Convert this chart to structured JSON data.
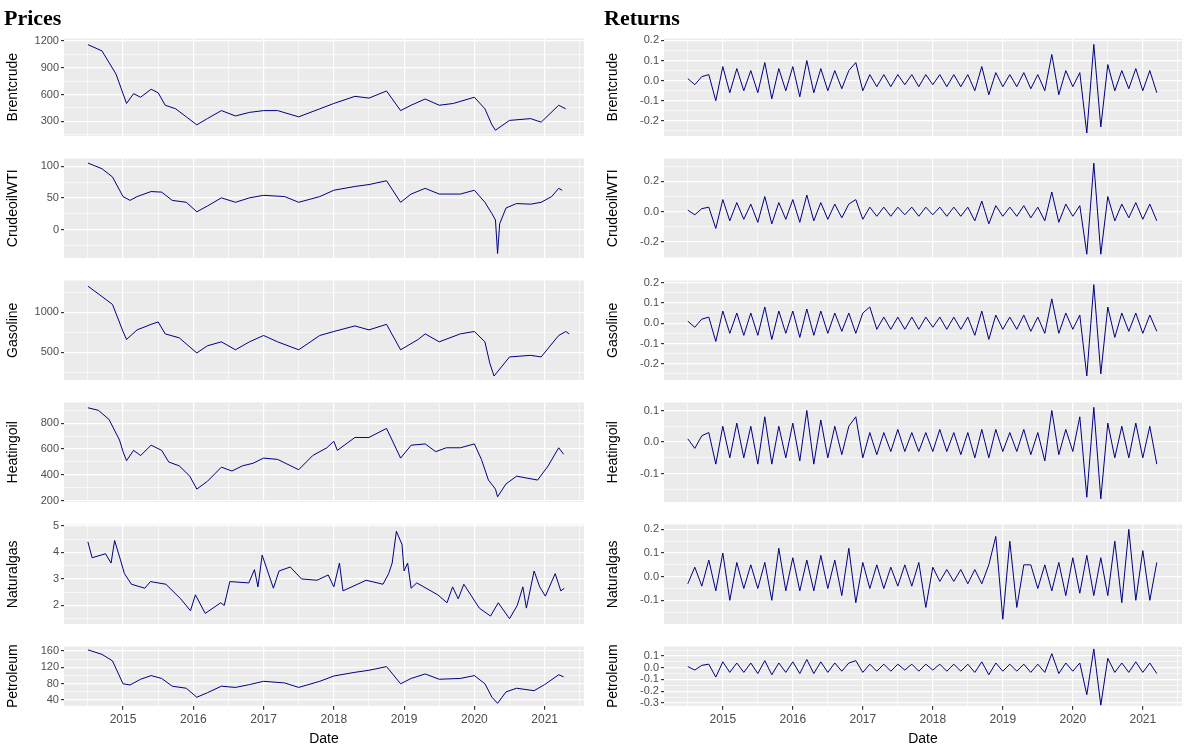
{
  "chart_data": [
    {
      "type": "line",
      "title": "Prices",
      "ylabel": "Brentcrude",
      "color": "#000080",
      "grid": true,
      "tick_labels": "y",
      "xlim": [
        2014.16,
        2021.56
      ],
      "xticks": [
        {
          "value": 2014.5,
          "label": null
        },
        2015,
        {
          "value": 2015.5,
          "label": null
        },
        2016,
        {
          "value": 2016.5,
          "label": null
        },
        2017,
        {
          "value": 2017.5,
          "label": null
        },
        2018,
        {
          "value": 2018.5,
          "label": null
        },
        2019,
        {
          "value": 2019.5,
          "label": null
        },
        2020,
        {
          "value": 2020.5,
          "label": null
        },
        2021,
        {
          "value": 2021.5,
          "label": null
        }
      ],
      "ylim": [
        135,
        1230
      ],
      "yticks": [
        {
          "value": 150,
          "label": null
        },
        300,
        {
          "value": 450,
          "label": null
        },
        600,
        {
          "value": 750,
          "label": null
        },
        900,
        {
          "value": 1050,
          "label": null
        },
        1200
      ],
      "x": [
        2014.5,
        2014.7,
        2014.8,
        2014.9,
        2015,
        2015.05,
        2015.15,
        2015.25,
        2015.4,
        2015.5,
        2015.6,
        2015.75,
        2015.9,
        2016.05,
        2016.2,
        2016.4,
        2016.6,
        2016.8,
        2017,
        2017.2,
        2017.5,
        2017.8,
        2018,
        2018.3,
        2018.5,
        2018.75,
        2018.95,
        2019.1,
        2019.3,
        2019.5,
        2019.7,
        2020,
        2020.15,
        2020.25,
        2020.3,
        2020.5,
        2020.8,
        2020.95,
        2021.2,
        2021.3
      ],
      "values": [
        1160,
        1090,
        960,
        830,
        610,
        500,
        610,
        570,
        660,
        620,
        480,
        440,
        350,
        260,
        330,
        420,
        360,
        400,
        420,
        420,
        350,
        440,
        500,
        580,
        560,
        640,
        420,
        480,
        550,
        480,
        500,
        570,
        440,
        260,
        200,
        310,
        330,
        290,
        480,
        440
      ]
    },
    {
      "type": "line",
      "ylabel": "CrudeoilWTI",
      "color": "#000080",
      "grid": true,
      "tick_labels": "y",
      "xlim": [
        2014.16,
        2021.56
      ],
      "xticks": [
        {
          "value": 2014.5,
          "label": null
        },
        2015,
        {
          "value": 2015.5,
          "label": null
        },
        2016,
        {
          "value": 2016.5,
          "label": null
        },
        2017,
        {
          "value": 2017.5,
          "label": null
        },
        2018,
        {
          "value": 2018.5,
          "label": null
        },
        2019,
        {
          "value": 2019.5,
          "label": null
        },
        2020,
        {
          "value": 2020.5,
          "label": null
        },
        2021,
        {
          "value": 2021.5,
          "label": null
        }
      ],
      "ylim": [
        -45,
        112
      ],
      "yticks": [
        {
          "value": -25,
          "label": null
        },
        0,
        {
          "value": 25,
          "label": null
        },
        50,
        {
          "value": 75,
          "label": null
        },
        100
      ],
      "x": [
        2014.5,
        2014.7,
        2014.85,
        2015,
        2015.1,
        2015.2,
        2015.4,
        2015.55,
        2015.7,
        2015.9,
        2016.05,
        2016.2,
        2016.4,
        2016.6,
        2016.8,
        2017,
        2017.3,
        2017.5,
        2017.8,
        2018,
        2018.3,
        2018.5,
        2018.75,
        2018.95,
        2019.1,
        2019.3,
        2019.5,
        2019.8,
        2020,
        2020.15,
        2020.25,
        2020.3,
        2020.33,
        2020.36,
        2020.45,
        2020.6,
        2020.8,
        2020.95,
        2021.1,
        2021.2,
        2021.25
      ],
      "values": [
        105,
        96,
        83,
        52,
        46,
        52,
        60,
        59,
        46,
        43,
        28,
        37,
        50,
        43,
        50,
        54,
        52,
        43,
        52,
        62,
        68,
        71,
        77,
        43,
        56,
        65,
        56,
        56,
        62,
        43,
        25,
        15,
        -38,
        9,
        34,
        41,
        40,
        43,
        52,
        65,
        62
      ]
    },
    {
      "type": "line",
      "ylabel": "Gasoline",
      "color": "#000080",
      "grid": true,
      "tick_labels": "y",
      "xlim": [
        2014.16,
        2021.56
      ],
      "xticks": [
        {
          "value": 2014.5,
          "label": null
        },
        2015,
        {
          "value": 2015.5,
          "label": null
        },
        2016,
        {
          "value": 2016.5,
          "label": null
        },
        2017,
        {
          "value": 2017.5,
          "label": null
        },
        2018,
        {
          "value": 2018.5,
          "label": null
        },
        2019,
        {
          "value": 2019.5,
          "label": null
        },
        2020,
        {
          "value": 2020.5,
          "label": null
        },
        2021,
        {
          "value": 2021.5,
          "label": null
        }
      ],
      "ylim": [
        150,
        1400
      ],
      "yticks": [
        {
          "value": 250,
          "label": null
        },
        500,
        {
          "value": 750,
          "label": null
        },
        1000,
        {
          "value": 1250,
          "label": null
        }
      ],
      "x": [
        2014.5,
        2014.7,
        2014.85,
        2015,
        2015.05,
        2015.2,
        2015.4,
        2015.5,
        2015.6,
        2015.8,
        2016.05,
        2016.2,
        2016.4,
        2016.6,
        2016.8,
        2017,
        2017.2,
        2017.5,
        2017.8,
        2018,
        2018.3,
        2018.5,
        2018.75,
        2018.95,
        2019.2,
        2019.3,
        2019.5,
        2019.8,
        2020,
        2020.15,
        2020.22,
        2020.28,
        2020.5,
        2020.8,
        2020.95,
        2021.2,
        2021.3,
        2021.35
      ],
      "values": [
        1330,
        1200,
        1100,
        760,
        660,
        780,
        850,
        880,
        730,
        680,
        490,
        580,
        630,
        530,
        630,
        710,
        630,
        530,
        710,
        760,
        830,
        780,
        850,
        530,
        660,
        730,
        630,
        730,
        760,
        630,
        360,
        200,
        440,
        460,
        440,
        710,
        760,
        730
      ]
    },
    {
      "type": "line",
      "ylabel": "Heatingoil",
      "color": "#000080",
      "grid": true,
      "tick_labels": "y",
      "xlim": [
        2014.16,
        2021.56
      ],
      "xticks": [
        {
          "value": 2014.5,
          "label": null
        },
        2015,
        {
          "value": 2015.5,
          "label": null
        },
        2016,
        {
          "value": 2016.5,
          "label": null
        },
        2017,
        {
          "value": 2017.5,
          "label": null
        },
        2018,
        {
          "value": 2018.5,
          "label": null
        },
        2019,
        {
          "value": 2019.5,
          "label": null
        },
        2020,
        {
          "value": 2020.5,
          "label": null
        },
        2021,
        {
          "value": 2021.5,
          "label": null
        }
      ],
      "ylim": [
        190,
        960
      ],
      "yticks": [
        200,
        {
          "value": 300,
          "label": null
        },
        400,
        {
          "value": 500,
          "label": null
        },
        600,
        {
          "value": 700,
          "label": null
        },
        800,
        {
          "value": 900,
          "label": null
        }
      ],
      "x": [
        2014.5,
        2014.65,
        2014.8,
        2014.95,
        2015,
        2015.05,
        2015.15,
        2015.25,
        2015.4,
        2015.55,
        2015.65,
        2015.8,
        2015.95,
        2016.05,
        2016.2,
        2016.4,
        2016.55,
        2016.7,
        2016.85,
        2017,
        2017.2,
        2017.5,
        2017.7,
        2017.9,
        2018,
        2018.05,
        2018.3,
        2018.5,
        2018.75,
        2018.95,
        2019.1,
        2019.3,
        2019.45,
        2019.6,
        2019.8,
        2020,
        2020.1,
        2020.2,
        2020.3,
        2020.33,
        2020.45,
        2020.6,
        2020.9,
        2021.05,
        2021.2,
        2021.27
      ],
      "values": [
        920,
        900,
        830,
        670,
        580,
        510,
        590,
        550,
        630,
        590,
        500,
        470,
        390,
        290,
        350,
        460,
        430,
        470,
        490,
        530,
        520,
        440,
        550,
        610,
        660,
        590,
        690,
        690,
        760,
        530,
        630,
        640,
        580,
        610,
        610,
        640,
        520,
        360,
        290,
        230,
        330,
        390,
        360,
        470,
        610,
        560
      ]
    },
    {
      "type": "line",
      "ylabel": "Naturalgas",
      "color": "#000080",
      "grid": true,
      "tick_labels": "y",
      "xlim": [
        2014.16,
        2021.56
      ],
      "xticks": [
        {
          "value": 2014.5,
          "label": null
        },
        2015,
        {
          "value": 2015.5,
          "label": null
        },
        2016,
        {
          "value": 2016.5,
          "label": null
        },
        2017,
        {
          "value": 2017.5,
          "label": null
        },
        2018,
        {
          "value": 2018.5,
          "label": null
        },
        2019,
        {
          "value": 2019.5,
          "label": null
        },
        2020,
        {
          "value": 2020.5,
          "label": null
        },
        2021,
        {
          "value": 2021.5,
          "label": null
        }
      ],
      "ylim": [
        1.3,
        5.05
      ],
      "yticks": [
        {
          "value": 1.5,
          "label": null
        },
        2,
        {
          "value": 2.5,
          "label": null
        },
        3,
        {
          "value": 3.5,
          "label": null
        },
        4,
        {
          "value": 4.5,
          "label": null
        },
        5
      ],
      "x": [
        2014.5,
        2014.56,
        2014.75,
        2014.83,
        2014.88,
        2014.96,
        2015.02,
        2015.12,
        2015.31,
        2015.39,
        2015.61,
        2015.82,
        2015.96,
        2016.03,
        2016.17,
        2016.39,
        2016.44,
        2016.52,
        2016.79,
        2016.87,
        2016.92,
        2016.98,
        2017.14,
        2017.22,
        2017.38,
        2017.54,
        2017.76,
        2017.92,
        2018,
        2018.08,
        2018.13,
        2018.46,
        2018.7,
        2018.78,
        2018.83,
        2018.89,
        2018.97,
        2019,
        2019.05,
        2019.1,
        2019.18,
        2019.48,
        2019.61,
        2019.69,
        2019.77,
        2019.85,
        2020.07,
        2020.23,
        2020.34,
        2020.5,
        2020.61,
        2020.69,
        2020.74,
        2020.85,
        2020.93,
        2021.01,
        2021.15,
        2021.23,
        2021.28
      ],
      "values": [
        4.4,
        3.8,
        3.95,
        3.6,
        4.45,
        3.75,
        3.2,
        2.8,
        2.65,
        2.9,
        2.8,
        2.25,
        1.8,
        2.4,
        1.7,
        2.1,
        2.0,
        2.9,
        2.85,
        3.35,
        2.7,
        3.9,
        2.65,
        3.3,
        3.45,
        3.0,
        2.95,
        3.15,
        2.7,
        3.6,
        2.55,
        2.95,
        2.8,
        3.2,
        3.6,
        4.8,
        4.3,
        3.3,
        3.6,
        2.65,
        2.85,
        2.4,
        2.1,
        2.7,
        2.25,
        2.8,
        1.9,
        1.6,
        2.1,
        1.5,
        2.0,
        2.7,
        1.9,
        3.3,
        2.7,
        2.35,
        3.2,
        2.55,
        2.65
      ]
    },
    {
      "type": "line",
      "ylabel": "Petroleum",
      "xlabel": "Date",
      "color": "#000080",
      "grid": true,
      "xlim": [
        2014.16,
        2021.56
      ],
      "xticks": [
        {
          "value": 2014.5,
          "label": null
        },
        2015,
        {
          "value": 2015.5,
          "label": null
        },
        2016,
        {
          "value": 2016.5,
          "label": null
        },
        2017,
        {
          "value": 2017.5,
          "label": null
        },
        2018,
        {
          "value": 2018.5,
          "label": null
        },
        2019,
        {
          "value": 2019.5,
          "label": null
        },
        2020,
        {
          "value": 2020.5,
          "label": null
        },
        2021,
        {
          "value": 2021.5,
          "label": null
        }
      ],
      "ylim": [
        26,
        171
      ],
      "yticks": [
        40,
        {
          "value": 60,
          "label": null
        },
        80,
        {
          "value": 100,
          "label": null
        },
        120,
        {
          "value": 140,
          "label": null
        },
        160
      ],
      "x": [
        2014.5,
        2014.7,
        2014.85,
        2015,
        2015.1,
        2015.25,
        2015.4,
        2015.55,
        2015.7,
        2015.9,
        2016.05,
        2016.2,
        2016.4,
        2016.6,
        2016.8,
        2017,
        2017.3,
        2017.5,
        2017.8,
        2018,
        2018.3,
        2018.5,
        2018.75,
        2018.95,
        2019.1,
        2019.3,
        2019.5,
        2019.8,
        2020,
        2020.15,
        2020.25,
        2020.33,
        2020.45,
        2020.6,
        2020.85,
        2021,
        2021.2,
        2021.27
      ],
      "values": [
        163,
        152,
        136,
        80,
        77,
        91,
        100,
        93,
        74,
        69,
        47,
        58,
        74,
        71,
        78,
        86,
        82,
        71,
        86,
        99,
        108,
        113,
        122,
        80,
        93,
        104,
        91,
        93,
        100,
        80,
        47,
        32,
        60,
        69,
        63,
        78,
        102,
        97
      ]
    },
    {
      "type": "line",
      "title": "Returns",
      "ylabel": "Brentcrude",
      "color": "#000080",
      "grid": true,
      "tick_labels": "y",
      "xlim": [
        2014.16,
        2021.56
      ],
      "xticks": [
        {
          "value": 2014.5,
          "label": null
        },
        2015,
        {
          "value": 2015.5,
          "label": null
        },
        2016,
        {
          "value": 2016.5,
          "label": null
        },
        2017,
        {
          "value": 2017.5,
          "label": null
        },
        2018,
        {
          "value": 2018.5,
          "label": null
        },
        2019,
        {
          "value": 2019.5,
          "label": null
        },
        2020,
        {
          "value": 2020.5,
          "label": null
        },
        2021,
        {
          "value": 2021.5,
          "label": null
        }
      ],
      "ylim": [
        -0.275,
        0.21
      ],
      "yticks": [
        {
          "value": -0.25,
          "label": null
        },
        -0.2,
        {
          "value": -0.15,
          "label": null
        },
        -0.1,
        {
          "value": -0.05,
          "label": null
        },
        {
          "value": 0,
          "label": "0.0"
        },
        {
          "value": 0.05,
          "label": null
        },
        0.1,
        {
          "value": 0.15,
          "label": null
        },
        0.2
      ],
      "x": [
        2014.5,
        2014.6,
        2014.7,
        2014.8,
        2014.9,
        2015,
        2015.1,
        2015.2,
        2015.3,
        2015.4,
        2015.5,
        2015.6,
        2015.7,
        2015.8,
        2015.9,
        2016,
        2016.1,
        2016.2,
        2016.3,
        2016.4,
        2016.5,
        2016.6,
        2016.7,
        2016.8,
        2016.9,
        2017,
        2017.1,
        2017.2,
        2017.3,
        2017.4,
        2017.5,
        2017.6,
        2017.7,
        2017.8,
        2017.9,
        2018,
        2018.1,
        2018.2,
        2018.3,
        2018.4,
        2018.5,
        2018.6,
        2018.7,
        2018.8,
        2018.9,
        2019,
        2019.1,
        2019.2,
        2019.3,
        2019.4,
        2019.5,
        2019.6,
        2019.7,
        2019.8,
        2019.9,
        2020,
        2020.1,
        2020.2,
        2020.3,
        2020.4,
        2020.5,
        2020.6,
        2020.7,
        2020.8,
        2020.9,
        2021,
        2021.1,
        2021.2
      ],
      "values": [
        0.01,
        -0.02,
        0.02,
        0.03,
        -0.1,
        0.07,
        -0.06,
        0.06,
        -0.05,
        0.05,
        -0.06,
        0.09,
        -0.09,
        0.06,
        -0.05,
        0.07,
        -0.08,
        0.1,
        -0.06,
        0.06,
        -0.05,
        0.05,
        -0.04,
        0.05,
        0.09,
        -0.05,
        0.03,
        -0.03,
        0.03,
        -0.03,
        0.03,
        -0.02,
        0.03,
        -0.03,
        0.03,
        -0.02,
        0.03,
        -0.03,
        0.03,
        -0.03,
        0.03,
        -0.05,
        0.07,
        -0.07,
        0.04,
        -0.03,
        0.03,
        -0.03,
        0.04,
        -0.04,
        0.03,
        -0.05,
        0.13,
        -0.07,
        0.05,
        -0.03,
        0.04,
        -0.26,
        0.18,
        -0.23,
        0.08,
        -0.05,
        0.05,
        -0.04,
        0.06,
        -0.05,
        0.05,
        -0.06
      ]
    },
    {
      "type": "line",
      "ylabel": "CrudeoilWTI",
      "color": "#000080",
      "grid": true,
      "tick_labels": "y",
      "xlim": [
        2014.16,
        2021.56
      ],
      "xticks": [
        {
          "value": 2014.5,
          "label": null
        },
        2015,
        {
          "value": 2015.5,
          "label": null
        },
        2016,
        {
          "value": 2016.5,
          "label": null
        },
        2017,
        {
          "value": 2017.5,
          "label": null
        },
        2018,
        {
          "value": 2018.5,
          "label": null
        },
        2019,
        {
          "value": 2019.5,
          "label": null
        },
        2020,
        {
          "value": 2020.5,
          "label": null
        },
        2021,
        {
          "value": 2021.5,
          "label": null
        }
      ],
      "ylim": [
        -0.305,
        0.35
      ],
      "yticks": [
        {
          "value": -0.3,
          "label": null
        },
        -0.2,
        {
          "value": -0.1,
          "label": null
        },
        {
          "value": 0,
          "label": "0.0"
        },
        {
          "value": 0.1,
          "label": null
        },
        0.2,
        {
          "value": 0.3,
          "label": null
        }
      ],
      "x": [
        2014.5,
        2014.6,
        2014.7,
        2014.8,
        2014.9,
        2015,
        2015.1,
        2015.2,
        2015.3,
        2015.4,
        2015.5,
        2015.6,
        2015.7,
        2015.8,
        2015.9,
        2016,
        2016.1,
        2016.2,
        2016.3,
        2016.4,
        2016.5,
        2016.6,
        2016.7,
        2016.8,
        2016.9,
        2017,
        2017.1,
        2017.2,
        2017.3,
        2017.4,
        2017.5,
        2017.6,
        2017.7,
        2017.8,
        2017.9,
        2018,
        2018.1,
        2018.2,
        2018.3,
        2018.4,
        2018.5,
        2018.6,
        2018.7,
        2018.8,
        2018.9,
        2019,
        2019.1,
        2019.2,
        2019.3,
        2019.4,
        2019.5,
        2019.6,
        2019.7,
        2019.8,
        2019.9,
        2020,
        2020.1,
        2020.2,
        2020.3,
        2020.4,
        2020.5,
        2020.6,
        2020.7,
        2020.8,
        2020.9,
        2021,
        2021.1,
        2021.2
      ],
      "values": [
        0.01,
        -0.02,
        0.02,
        0.03,
        -0.11,
        0.08,
        -0.06,
        0.06,
        -0.05,
        0.05,
        -0.07,
        0.1,
        -0.08,
        0.06,
        -0.05,
        0.08,
        -0.07,
        0.11,
        -0.06,
        0.06,
        -0.05,
        0.05,
        -0.04,
        0.05,
        0.08,
        -0.05,
        0.03,
        -0.03,
        0.03,
        -0.03,
        0.03,
        -0.02,
        0.03,
        -0.03,
        0.03,
        -0.02,
        0.03,
        -0.03,
        0.03,
        -0.03,
        0.03,
        -0.06,
        0.07,
        -0.08,
        0.04,
        -0.03,
        0.03,
        -0.03,
        0.04,
        -0.04,
        0.03,
        -0.06,
        0.13,
        -0.07,
        0.05,
        -0.03,
        0.04,
        -0.28,
        0.32,
        -0.28,
        0.1,
        -0.06,
        0.05,
        -0.04,
        0.06,
        -0.05,
        0.05,
        -0.06
      ]
    },
    {
      "type": "line",
      "ylabel": "Gasoline",
      "color": "#000080",
      "grid": true,
      "tick_labels": "y",
      "xlim": [
        2014.16,
        2021.56
      ],
      "xticks": [
        {
          "value": 2014.5,
          "label": null
        },
        2015,
        {
          "value": 2015.5,
          "label": null
        },
        2016,
        {
          "value": 2016.5,
          "label": null
        },
        2017,
        {
          "value": 2017.5,
          "label": null
        },
        2018,
        {
          "value": 2018.5,
          "label": null
        },
        2019,
        {
          "value": 2019.5,
          "label": null
        },
        2020,
        {
          "value": 2020.5,
          "label": null
        },
        2021,
        {
          "value": 2021.5,
          "label": null
        }
      ],
      "ylim": [
        -0.28,
        0.21
      ],
      "yticks": [
        {
          "value": -0.25,
          "label": null
        },
        -0.2,
        {
          "value": -0.15,
          "label": null
        },
        -0.1,
        {
          "value": -0.05,
          "label": null
        },
        {
          "value": 0,
          "label": "0.0"
        },
        {
          "value": 0.05,
          "label": null
        },
        0.1,
        {
          "value": 0.15,
          "label": null
        },
        0.2
      ],
      "x": [
        2014.5,
        2014.6,
        2014.7,
        2014.8,
        2014.9,
        2015,
        2015.1,
        2015.2,
        2015.3,
        2015.4,
        2015.5,
        2015.6,
        2015.7,
        2015.8,
        2015.9,
        2016,
        2016.1,
        2016.2,
        2016.3,
        2016.4,
        2016.5,
        2016.6,
        2016.7,
        2016.8,
        2016.9,
        2017,
        2017.1,
        2017.2,
        2017.3,
        2017.4,
        2017.5,
        2017.6,
        2017.7,
        2017.8,
        2017.9,
        2018,
        2018.1,
        2018.2,
        2018.3,
        2018.4,
        2018.5,
        2018.6,
        2018.7,
        2018.8,
        2018.9,
        2019,
        2019.1,
        2019.2,
        2019.3,
        2019.4,
        2019.5,
        2019.6,
        2019.7,
        2019.8,
        2019.9,
        2020,
        2020.1,
        2020.2,
        2020.3,
        2020.4,
        2020.5,
        2020.6,
        2020.7,
        2020.8,
        2020.9,
        2021,
        2021.1,
        2021.2
      ],
      "values": [
        0.01,
        -0.02,
        0.02,
        0.03,
        -0.09,
        0.06,
        -0.05,
        0.05,
        -0.06,
        0.05,
        -0.06,
        0.08,
        -0.08,
        0.06,
        -0.05,
        0.06,
        -0.07,
        0.07,
        -0.06,
        0.06,
        -0.05,
        0.05,
        -0.04,
        0.05,
        -0.05,
        0.05,
        0.08,
        -0.03,
        0.03,
        -0.03,
        0.03,
        -0.03,
        0.03,
        -0.03,
        0.03,
        -0.02,
        0.03,
        -0.03,
        0.03,
        -0.03,
        0.03,
        -0.06,
        0.06,
        -0.08,
        0.04,
        -0.03,
        0.03,
        -0.03,
        0.04,
        -0.04,
        0.03,
        -0.05,
        0.12,
        -0.05,
        0.05,
        -0.03,
        0.04,
        -0.26,
        0.19,
        -0.25,
        0.08,
        -0.07,
        0.05,
        -0.04,
        0.05,
        -0.05,
        0.04,
        -0.04
      ]
    },
    {
      "type": "line",
      "ylabel": "Heatingoil",
      "color": "#000080",
      "grid": true,
      "tick_labels": "y",
      "xlim": [
        2014.16,
        2021.56
      ],
      "xticks": [
        {
          "value": 2014.5,
          "label": null
        },
        2015,
        {
          "value": 2015.5,
          "label": null
        },
        2016,
        {
          "value": 2016.5,
          "label": null
        },
        2017,
        {
          "value": 2017.5,
          "label": null
        },
        2018,
        {
          "value": 2018.5,
          "label": null
        },
        2019,
        {
          "value": 2019.5,
          "label": null
        },
        2020,
        {
          "value": 2020.5,
          "label": null
        },
        2021,
        {
          "value": 2021.5,
          "label": null
        }
      ],
      "ylim": [
        -0.19,
        0.125
      ],
      "yticks": [
        {
          "value": -0.15,
          "label": null
        },
        -0.1,
        {
          "value": -0.05,
          "label": null
        },
        {
          "value": 0,
          "label": "0.0"
        },
        {
          "value": 0.05,
          "label": null
        },
        0.1
      ],
      "x": [
        2014.5,
        2014.6,
        2014.7,
        2014.8,
        2014.9,
        2015,
        2015.1,
        2015.2,
        2015.3,
        2015.4,
        2015.5,
        2015.6,
        2015.7,
        2015.8,
        2015.9,
        2016,
        2016.1,
        2016.2,
        2016.3,
        2016.4,
        2016.5,
        2016.6,
        2016.7,
        2016.8,
        2016.9,
        2017,
        2017.1,
        2017.2,
        2017.3,
        2017.4,
        2017.5,
        2017.6,
        2017.7,
        2017.8,
        2017.9,
        2018,
        2018.1,
        2018.2,
        2018.3,
        2018.4,
        2018.5,
        2018.6,
        2018.7,
        2018.8,
        2018.9,
        2019,
        2019.1,
        2019.2,
        2019.3,
        2019.4,
        2019.5,
        2019.6,
        2019.7,
        2019.8,
        2019.9,
        2020,
        2020.1,
        2020.2,
        2020.3,
        2020.4,
        2020.5,
        2020.6,
        2020.7,
        2020.8,
        2020.9,
        2021,
        2021.1,
        2021.2
      ],
      "values": [
        0.01,
        -0.02,
        0.02,
        0.03,
        -0.07,
        0.05,
        -0.05,
        0.06,
        -0.05,
        0.05,
        -0.07,
        0.08,
        -0.07,
        0.05,
        -0.05,
        0.06,
        -0.06,
        0.1,
        -0.07,
        0.07,
        -0.05,
        0.05,
        -0.04,
        0.05,
        0.08,
        -0.05,
        0.03,
        -0.04,
        0.03,
        -0.03,
        0.04,
        -0.03,
        0.03,
        -0.03,
        0.03,
        -0.03,
        0.04,
        -0.03,
        0.03,
        -0.04,
        0.03,
        -0.05,
        0.04,
        -0.05,
        0.04,
        -0.03,
        0.03,
        -0.03,
        0.04,
        -0.04,
        0.03,
        -0.06,
        0.1,
        -0.04,
        0.04,
        -0.03,
        0.08,
        -0.175,
        0.11,
        -0.18,
        0.06,
        -0.05,
        0.05,
        -0.05,
        0.06,
        -0.05,
        0.05,
        -0.07
      ]
    },
    {
      "type": "line",
      "ylabel": "Naturalgas",
      "color": "#000080",
      "grid": true,
      "tick_labels": "y",
      "xlim": [
        2014.16,
        2021.56
      ],
      "xticks": [
        {
          "value": 2014.5,
          "label": null
        },
        2015,
        {
          "value": 2015.5,
          "label": null
        },
        2016,
        {
          "value": 2016.5,
          "label": null
        },
        2017,
        {
          "value": 2017.5,
          "label": null
        },
        2018,
        {
          "value": 2018.5,
          "label": null
        },
        2019,
        {
          "value": 2019.5,
          "label": null
        },
        2020,
        {
          "value": 2020.5,
          "label": null
        },
        2021,
        {
          "value": 2021.5,
          "label": null
        }
      ],
      "ylim": [
        -0.2,
        0.22
      ],
      "yticks": [
        {
          "value": -0.15,
          "label": null
        },
        -0.1,
        {
          "value": -0.05,
          "label": null
        },
        {
          "value": 0,
          "label": "0.0"
        },
        {
          "value": 0.05,
          "label": null
        },
        0.1,
        {
          "value": 0.15,
          "label": null
        },
        0.2
      ],
      "x": [
        2014.5,
        2014.6,
        2014.7,
        2014.8,
        2014.9,
        2015,
        2015.1,
        2015.2,
        2015.3,
        2015.4,
        2015.5,
        2015.6,
        2015.7,
        2015.8,
        2015.9,
        2016,
        2016.1,
        2016.2,
        2016.3,
        2016.4,
        2016.5,
        2016.6,
        2016.7,
        2016.8,
        2016.9,
        2017,
        2017.1,
        2017.2,
        2017.3,
        2017.4,
        2017.5,
        2017.6,
        2017.7,
        2017.8,
        2017.9,
        2018,
        2018.1,
        2018.2,
        2018.3,
        2018.4,
        2018.5,
        2018.6,
        2018.7,
        2018.8,
        2018.9,
        2019,
        2019.1,
        2019.2,
        2019.3,
        2019.4,
        2019.5,
        2019.6,
        2019.7,
        2019.8,
        2019.9,
        2020,
        2020.1,
        2020.2,
        2020.3,
        2020.4,
        2020.5,
        2020.6,
        2020.7,
        2020.8,
        2020.9,
        2021,
        2021.1,
        2021.2
      ],
      "values": [
        -0.03,
        0.04,
        -0.04,
        0.07,
        -0.06,
        0.1,
        -0.1,
        0.06,
        -0.05,
        0.05,
        -0.05,
        0.06,
        -0.1,
        0.12,
        -0.06,
        0.08,
        -0.06,
        0.07,
        -0.06,
        0.09,
        -0.05,
        0.07,
        -0.08,
        0.12,
        -0.11,
        0.06,
        -0.05,
        0.05,
        -0.05,
        0.04,
        -0.04,
        0.05,
        -0.04,
        0.06,
        -0.13,
        0.04,
        -0.02,
        0.03,
        -0.02,
        0.03,
        -0.03,
        0.03,
        -0.03,
        0.05,
        0.17,
        -0.18,
        0.15,
        -0.13,
        0.05,
        0.05,
        -0.05,
        0.05,
        -0.06,
        0.06,
        -0.08,
        0.08,
        -0.07,
        0.09,
        -0.08,
        0.08,
        -0.08,
        0.15,
        -0.11,
        0.2,
        -0.1,
        0.11,
        -0.1,
        0.06
      ]
    },
    {
      "type": "line",
      "ylabel": "Petroleum",
      "xlabel": "Date",
      "color": "#000080",
      "grid": true,
      "xlim": [
        2014.16,
        2021.56
      ],
      "xticks": [
        {
          "value": 2014.5,
          "label": null
        },
        2015,
        {
          "value": 2015.5,
          "label": null
        },
        2016,
        {
          "value": 2016.5,
          "label": null
        },
        2017,
        {
          "value": 2017.5,
          "label": null
        },
        2018,
        {
          "value": 2018.5,
          "label": null
        },
        2019,
        {
          "value": 2019.5,
          "label": null
        },
        2020,
        {
          "value": 2020.5,
          "label": null
        },
        2021,
        {
          "value": 2021.5,
          "label": null
        }
      ],
      "ylim": [
        -0.325,
        0.18
      ],
      "yticks": [
        -0.3,
        {
          "value": -0.25,
          "label": null
        },
        -0.2,
        {
          "value": -0.15,
          "label": null
        },
        -0.1,
        {
          "value": -0.05,
          "label": null
        },
        {
          "value": 0,
          "label": "0.0"
        },
        {
          "value": 0.05,
          "label": null
        },
        0.1,
        {
          "value": 0.15,
          "label": null
        }
      ],
      "x": [
        2014.5,
        2014.6,
        2014.7,
        2014.8,
        2014.9,
        2015,
        2015.1,
        2015.2,
        2015.3,
        2015.4,
        2015.5,
        2015.6,
        2015.7,
        2015.8,
        2015.9,
        2016,
        2016.1,
        2016.2,
        2016.3,
        2016.4,
        2016.5,
        2016.6,
        2016.7,
        2016.8,
        2016.9,
        2017,
        2017.1,
        2017.2,
        2017.3,
        2017.4,
        2017.5,
        2017.6,
        2017.7,
        2017.8,
        2017.9,
        2018,
        2018.1,
        2018.2,
        2018.3,
        2018.4,
        2018.5,
        2018.6,
        2018.7,
        2018.8,
        2018.9,
        2019,
        2019.1,
        2019.2,
        2019.3,
        2019.4,
        2019.5,
        2019.6,
        2019.7,
        2019.8,
        2019.9,
        2020,
        2020.1,
        2020.2,
        2020.3,
        2020.4,
        2020.5,
        2020.6,
        2020.7,
        2020.8,
        2020.9,
        2021,
        2021.1,
        2021.2
      ],
      "values": [
        0.01,
        -0.02,
        0.02,
        0.03,
        -0.08,
        0.05,
        -0.04,
        0.04,
        -0.04,
        0.04,
        -0.05,
        0.06,
        -0.06,
        0.04,
        -0.04,
        0.05,
        -0.05,
        0.07,
        -0.05,
        0.05,
        -0.04,
        0.04,
        -0.03,
        0.04,
        0.06,
        -0.04,
        0.03,
        -0.03,
        0.03,
        -0.03,
        0.03,
        -0.02,
        0.03,
        -0.03,
        0.03,
        -0.02,
        0.03,
        -0.03,
        0.03,
        -0.03,
        0.03,
        -0.04,
        0.05,
        -0.06,
        0.04,
        -0.03,
        0.03,
        -0.03,
        0.03,
        -0.04,
        0.03,
        -0.04,
        0.12,
        -0.05,
        0.04,
        -0.03,
        0.04,
        -0.23,
        0.16,
        -0.32,
        0.08,
        -0.04,
        0.04,
        -0.04,
        0.05,
        -0.04,
        0.04,
        -0.05
      ]
    }
  ]
}
